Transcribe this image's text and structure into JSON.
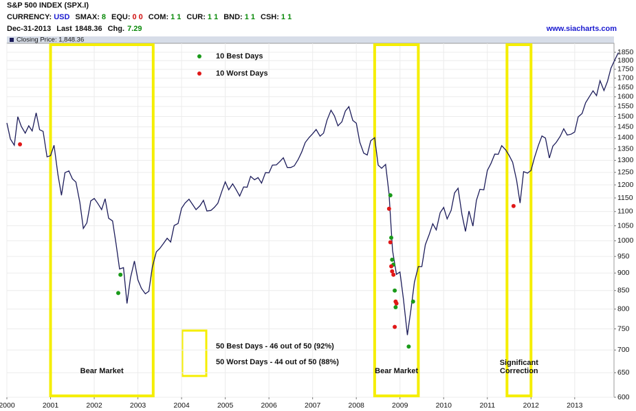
{
  "chart_data": {
    "type": "line",
    "title": "S&P 500 INDEX (SPX.I)",
    "info": [
      {
        "label": "CURRENCY:",
        "value": "USD",
        "color": "#1a1ad0"
      },
      {
        "label": "SMAX:",
        "value": "8",
        "color": "#0a8a0a"
      },
      {
        "label": "EQU:",
        "value": "0 0",
        "color": "#d01010"
      },
      {
        "label": "COM:",
        "value": "1 1",
        "color": "#0a8a0a"
      },
      {
        "label": "CUR:",
        "value": "1 1",
        "color": "#0a8a0a"
      },
      {
        "label": "BND:",
        "value": "1 1",
        "color": "#0a8a0a"
      },
      {
        "label": "CSH:",
        "value": "1 1",
        "color": "#0a8a0a"
      }
    ],
    "date": "Dec-31-2013",
    "last_label": "Last",
    "last": "1848.36",
    "chg_label": "Chg.",
    "chg": "7.29",
    "chg_color": "#0a8a0a",
    "source": "www.siacharts.com",
    "legend_label": "Closing Price: 1,848.36",
    "log_scale": true,
    "grid": true,
    "line_color": "#1c1c5a",
    "xlim": [
      2000,
      2013.9
    ],
    "ylim": [
      600,
      1905
    ],
    "xticks": [
      2000,
      2001,
      2002,
      2003,
      2004,
      2005,
      2006,
      2007,
      2008,
      2009,
      2010,
      2011,
      2012,
      2013
    ],
    "yticks": [
      600,
      650,
      700,
      750,
      800,
      850,
      900,
      950,
      1000,
      1050,
      1100,
      1150,
      1200,
      1250,
      1300,
      1350,
      1400,
      1450,
      1500,
      1550,
      1600,
      1650,
      1700,
      1750,
      1800,
      1850
    ],
    "x": [
      2000,
      2000.08,
      2000.17,
      2000.25,
      2000.33,
      2000.42,
      2000.5,
      2000.58,
      2000.67,
      2000.75,
      2000.83,
      2000.92,
      2001,
      2001.08,
      2001.17,
      2001.25,
      2001.33,
      2001.42,
      2001.5,
      2001.58,
      2001.67,
      2001.75,
      2001.83,
      2001.92,
      2002,
      2002.08,
      2002.17,
      2002.25,
      2002.33,
      2002.42,
      2002.5,
      2002.58,
      2002.67,
      2002.75,
      2002.83,
      2002.92,
      2003,
      2003.08,
      2003.17,
      2003.25,
      2003.33,
      2003.42,
      2003.5,
      2003.58,
      2003.67,
      2003.75,
      2003.83,
      2003.92,
      2004,
      2004.08,
      2004.17,
      2004.25,
      2004.33,
      2004.42,
      2004.5,
      2004.58,
      2004.67,
      2004.75,
      2004.83,
      2004.92,
      2005,
      2005.08,
      2005.17,
      2005.25,
      2005.33,
      2005.42,
      2005.5,
      2005.58,
      2005.67,
      2005.75,
      2005.83,
      2005.92,
      2006,
      2006.08,
      2006.17,
      2006.25,
      2006.33,
      2006.42,
      2006.5,
      2006.58,
      2006.67,
      2006.75,
      2006.83,
      2006.92,
      2007,
      2007.08,
      2007.17,
      2007.25,
      2007.33,
      2007.42,
      2007.5,
      2007.58,
      2007.67,
      2007.75,
      2007.83,
      2007.92,
      2008,
      2008.08,
      2008.17,
      2008.25,
      2008.33,
      2008.42,
      2008.5,
      2008.58,
      2008.67,
      2008.75,
      2008.83,
      2008.92,
      2009,
      2009.08,
      2009.17,
      2009.25,
      2009.33,
      2009.42,
      2009.5,
      2009.58,
      2009.67,
      2009.75,
      2009.83,
      2009.92,
      2010,
      2010.08,
      2010.17,
      2010.25,
      2010.33,
      2010.42,
      2010.5,
      2010.58,
      2010.67,
      2010.75,
      2010.83,
      2010.92,
      2011,
      2011.08,
      2011.17,
      2011.25,
      2011.33,
      2011.42,
      2011.5,
      2011.58,
      2011.67,
      2011.75,
      2011.83,
      2011.92,
      2012,
      2012.08,
      2012.17,
      2012.25,
      2012.33,
      2012.42,
      2012.5,
      2012.58,
      2012.67,
      2012.75,
      2012.83,
      2012.92,
      2013,
      2013.08,
      2013.17,
      2013.25,
      2013.33,
      2013.42,
      2013.5,
      2013.58,
      2013.67,
      2013.75,
      2013.83,
      2013.92,
      2014
    ],
    "values": [
      1469,
      1394,
      1366,
      1499,
      1452,
      1421,
      1455,
      1431,
      1518,
      1437,
      1429,
      1315,
      1320,
      1366,
      1240,
      1160,
      1249,
      1256,
      1224,
      1211,
      1134,
      1041,
      1060,
      1139,
      1148,
      1130,
      1107,
      1147,
      1076,
      1067,
      990,
      912,
      916,
      815,
      886,
      936,
      880,
      856,
      841,
      848,
      917,
      964,
      975,
      990,
      1008,
      996,
      1051,
      1058,
      1112,
      1131,
      1145,
      1126,
      1107,
      1121,
      1141,
      1102,
      1104,
      1115,
      1130,
      1174,
      1212,
      1181,
      1204,
      1181,
      1157,
      1192,
      1191,
      1234,
      1220,
      1229,
      1207,
      1249,
      1248,
      1280,
      1281,
      1295,
      1311,
      1270,
      1270,
      1277,
      1304,
      1336,
      1378,
      1401,
      1418,
      1438,
      1407,
      1421,
      1482,
      1531,
      1503,
      1455,
      1474,
      1527,
      1549,
      1481,
      1468,
      1379,
      1331,
      1323,
      1386,
      1400,
      1280,
      1267,
      1283,
      1166,
      969,
      896,
      903,
      826,
      735,
      798,
      873,
      919,
      919,
      987,
      1021,
      1057,
      1036,
      1096,
      1115,
      1074,
      1104,
      1169,
      1187,
      1089,
      1031,
      1102,
      1049,
      1141,
      1183,
      1181,
      1258,
      1286,
      1327,
      1326,
      1364,
      1345,
      1321,
      1292,
      1219,
      1131,
      1253,
      1247,
      1258,
      1312,
      1366,
      1408,
      1398,
      1310,
      1362,
      1379,
      1407,
      1441,
      1412,
      1416,
      1426,
      1498,
      1515,
      1569,
      1598,
      1631,
      1606,
      1686,
      1633,
      1682,
      1757,
      1806,
      1848
    ],
    "series": [
      {
        "name": "10 Best Days",
        "color": "#1a9a1a",
        "x": [
          2002.55,
          2002.6,
          2008.78,
          2008.8,
          2008.82,
          2008.85,
          2008.88,
          2008.9,
          2009.2,
          2009.3
        ],
        "values": [
          843,
          895,
          1160,
          1010,
          940,
          925,
          850,
          805,
          708,
          820
        ]
      },
      {
        "name": "10 Worst Days",
        "color": "#e01818",
        "x": [
          2000.3,
          2008.75,
          2008.78,
          2008.8,
          2008.82,
          2008.85,
          2008.9,
          2008.92,
          2008.88,
          2011.6
        ],
        "values": [
          1370,
          1110,
          995,
          920,
          905,
          895,
          820,
          815,
          755,
          1120
        ]
      }
    ],
    "periods": [
      {
        "label_lines": [
          "Bear Market"
        ],
        "start": 2001,
        "end": 2003.35
      },
      {
        "label_lines": [
          "Bear Market"
        ],
        "start": 2008.42,
        "end": 2009.42
      },
      {
        "label_lines": [
          "Significant",
          "Correction"
        ],
        "start": 2011.45,
        "end": 2012
      }
    ],
    "period_color": "#f5ee00",
    "notes": [
      "50 Best Days - 46 out of 50 (92%)",
      "50 Worst Days - 44 out of 50 (88%)"
    ]
  }
}
